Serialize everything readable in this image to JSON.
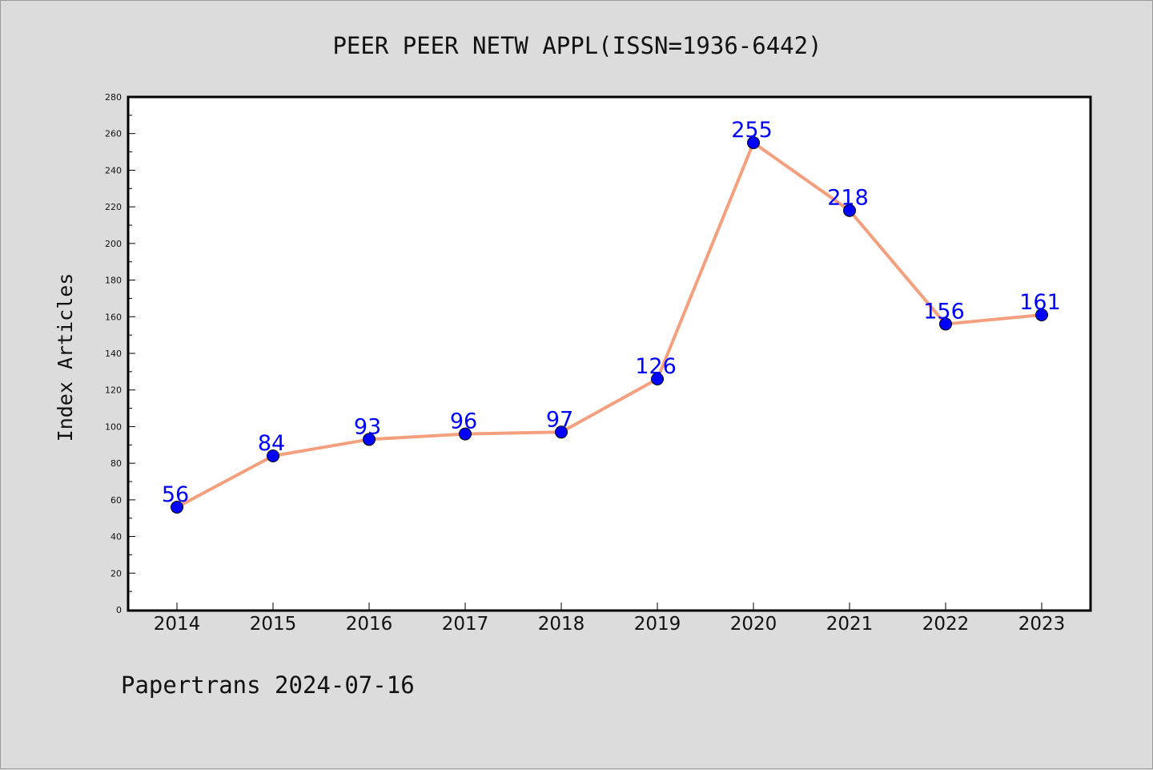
{
  "chart_data": {
    "type": "line",
    "title": "PEER PEER NETW APPL(ISSN=1936-6442)",
    "xlabel": "",
    "ylabel": "Index Articles",
    "categories": [
      "2014",
      "2015",
      "2016",
      "2017",
      "2018",
      "2019",
      "2020",
      "2021",
      "2022",
      "2023"
    ],
    "series": [
      {
        "values": [
          56,
          84,
          93,
          96,
          97,
          126,
          255,
          218,
          156,
          161
        ]
      }
    ],
    "ylim": [
      0,
      280
    ],
    "yticks": [
      0,
      20,
      40,
      60,
      80,
      100,
      120,
      140,
      160,
      180,
      200,
      220,
      240,
      260,
      280
    ],
    "grid": false,
    "data_labels": true,
    "colors": {
      "line": "#f4a07e",
      "marker": "#0000ff",
      "label": "#0000ff"
    }
  },
  "footer": "Papertrans 2024-07-16"
}
